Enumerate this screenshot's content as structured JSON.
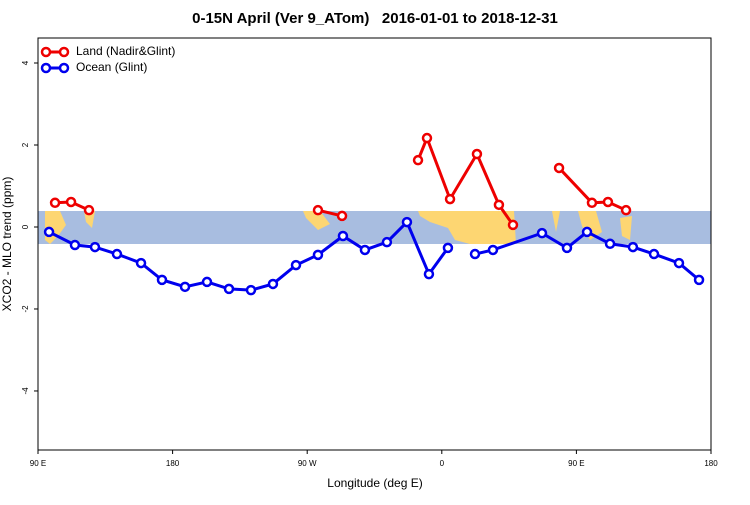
{
  "chart_data": {
    "type": "line",
    "title": "0-15N April (Ver 9_ATom)   2016-01-01 to 2018-12-31",
    "x_label": "Longitude (deg E)",
    "y_label": "XCO2 - MLO trend (ppm)",
    "xlim": [
      90,
      540
    ],
    "ylim": [
      -5.44,
      4.61
    ],
    "xticks": [
      {
        "value": 90,
        "label": "90 E"
      },
      {
        "value": 180,
        "label": "180"
      },
      {
        "value": 270,
        "label": "90 W"
      },
      {
        "value": 360,
        "label": "0"
      },
      {
        "value": 450,
        "label": "90 E"
      },
      {
        "value": 540,
        "label": "180"
      }
    ],
    "yticks": [
      -4,
      -2,
      0,
      2,
      4
    ],
    "legend": "top-left",
    "series": [
      {
        "name": "Land (Nadir&Glint)",
        "color": "#ee0000",
        "x": [
          101.4,
          112.1,
          124.1,
          null,
          277.2,
          293.3,
          null,
          344.1,
          350.1,
          365.5,
          383.5,
          398.2,
          407.6,
          null,
          438.4,
          460.4,
          471.1,
          483.2
        ],
        "values": [
          0.59,
          0.61,
          0.41,
          null,
          0.41,
          0.27,
          null,
          1.63,
          2.17,
          0.68,
          1.78,
          0.54,
          0.05,
          null,
          1.44,
          0.59,
          0.61,
          0.41
        ]
      },
      {
        "name": "Ocean (Glint)",
        "color": "#0000ee",
        "x": [
          97.4,
          114.7,
          128.1,
          142.8,
          158.9,
          172.9,
          188.3,
          203,
          217.7,
          232.4,
          247.1,
          262.5,
          277.2,
          293.9,
          308.6,
          323.3,
          336.7,
          351.4,
          364.1,
          null,
          382.2,
          394.2,
          427,
          443.7,
          457.1,
          472.5,
          487.8,
          501.9,
          518.6,
          532
        ],
        "values": [
          -0.12,
          -0.44,
          -0.49,
          -0.66,
          -0.88,
          -1.29,
          -1.46,
          -1.34,
          -1.51,
          -1.54,
          -1.39,
          -0.93,
          -0.68,
          -0.22,
          -0.56,
          -0.37,
          0.12,
          -1.15,
          -0.51,
          null,
          -0.66,
          -0.56,
          -0.15,
          -0.51,
          -0.12,
          -0.41,
          -0.49,
          -0.66,
          -0.88,
          -1.29
        ]
      }
    ]
  }
}
